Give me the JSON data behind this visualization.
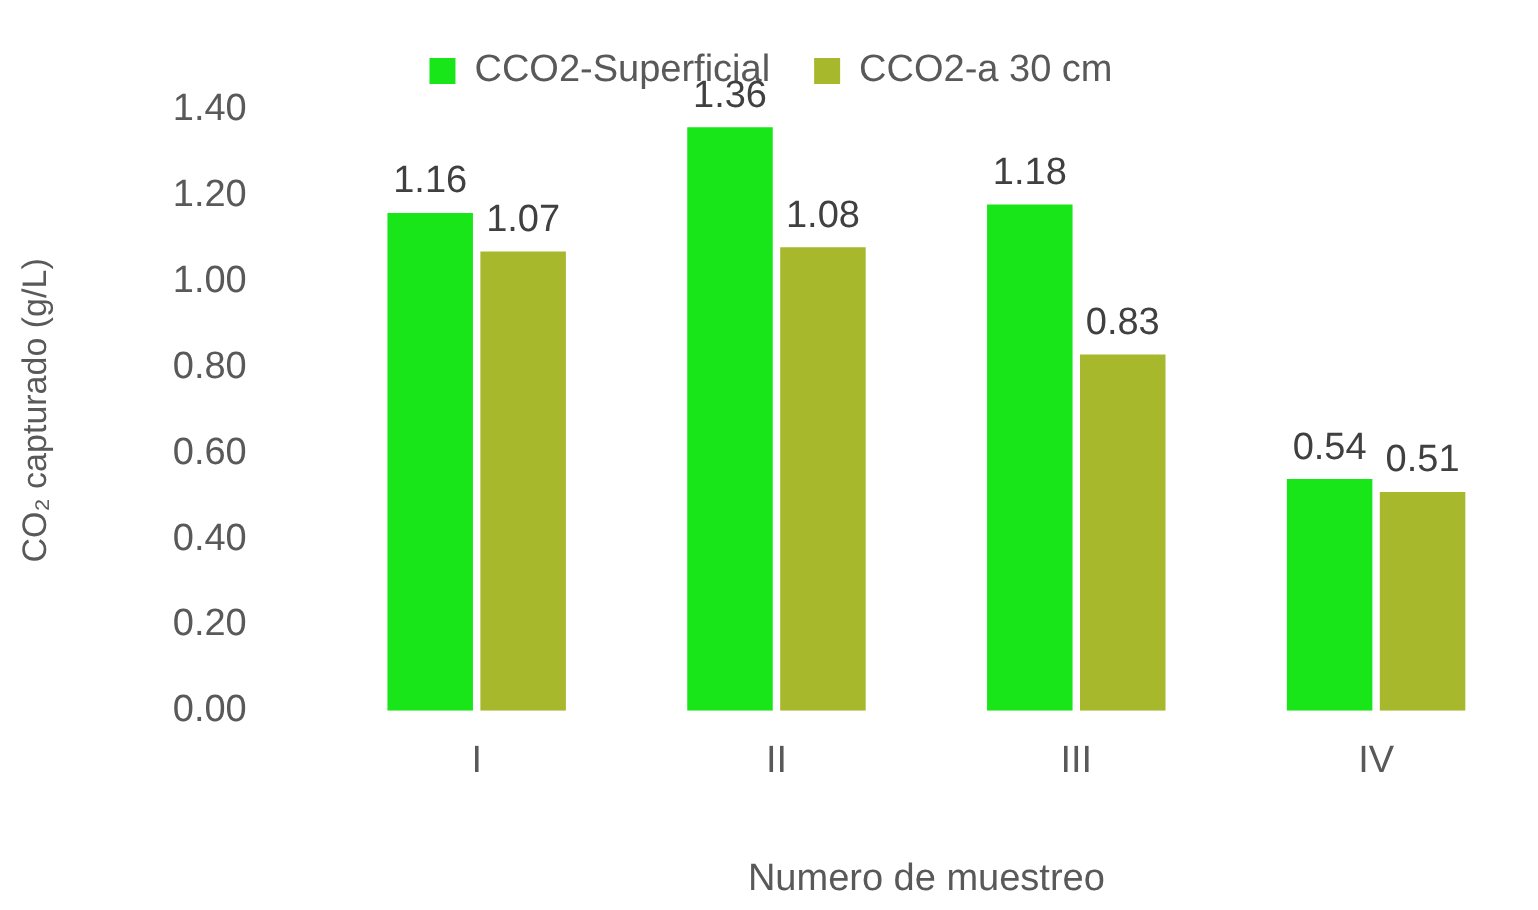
{
  "chart_data": {
    "type": "bar",
    "categories": [
      "I",
      "II",
      "III",
      "IV"
    ],
    "series": [
      {
        "name": "CCO2-Superficial",
        "color": "#19e619",
        "values": [
          1.16,
          1.36,
          1.18,
          0.54
        ]
      },
      {
        "name": "CCO2-a 30 cm",
        "color": "#a8b82c",
        "values": [
          1.07,
          1.08,
          0.83,
          0.51
        ]
      }
    ],
    "xlabel": "Numero de muestreo",
    "ylabel": "CO₂ capturado (g/L)",
    "ylim": [
      0,
      1.4
    ],
    "yticks": [
      {
        "value": 0,
        "label": "0.00"
      },
      {
        "value": 0.2,
        "label": "0.20"
      },
      {
        "value": 0.4,
        "label": "0.40"
      },
      {
        "value": 0.6,
        "label": "0.60"
      },
      {
        "value": 0.8,
        "label": "0.80"
      },
      {
        "value": 1,
        "label": "1.00"
      },
      {
        "value": 1.2,
        "label": "1.20"
      },
      {
        "value": 1.4,
        "label": "1.40"
      }
    ],
    "data_labels": true,
    "legend": "top",
    "grid": false
  }
}
